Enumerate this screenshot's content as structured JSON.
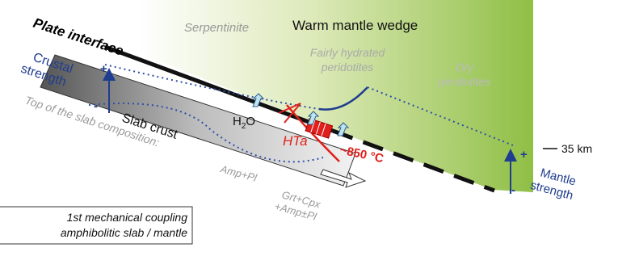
{
  "labels": {
    "plate_interface": "Plate interface",
    "serpentinite": "Serpentinite",
    "warm_mantle_wedge": "Warm mantle wedge",
    "fairly_hydrated": [
      "Fairly hydrated",
      "peridotites"
    ],
    "dry": [
      "Dry",
      "peridotites"
    ],
    "crustal_strength": [
      "Crustal",
      "strength"
    ],
    "plus": "+",
    "minus": "-",
    "slab_crust": "Slab crust",
    "top_composition": "Top of the slab composition:",
    "water": {
      "main": "H",
      "sub": "2",
      "end": "O"
    },
    "hta": "HTa",
    "temperature": "~850 °C",
    "depth": "35 km",
    "amp_pl": "Amp+Pl",
    "grt": [
      "Grt+Cpx",
      "+Amp±Pl"
    ],
    "mantle_strength": [
      "Mantle",
      "strength"
    ],
    "coupling_note": [
      "1st mechanical coupling",
      "amphibolitic slab / mantle"
    ]
  }
}
